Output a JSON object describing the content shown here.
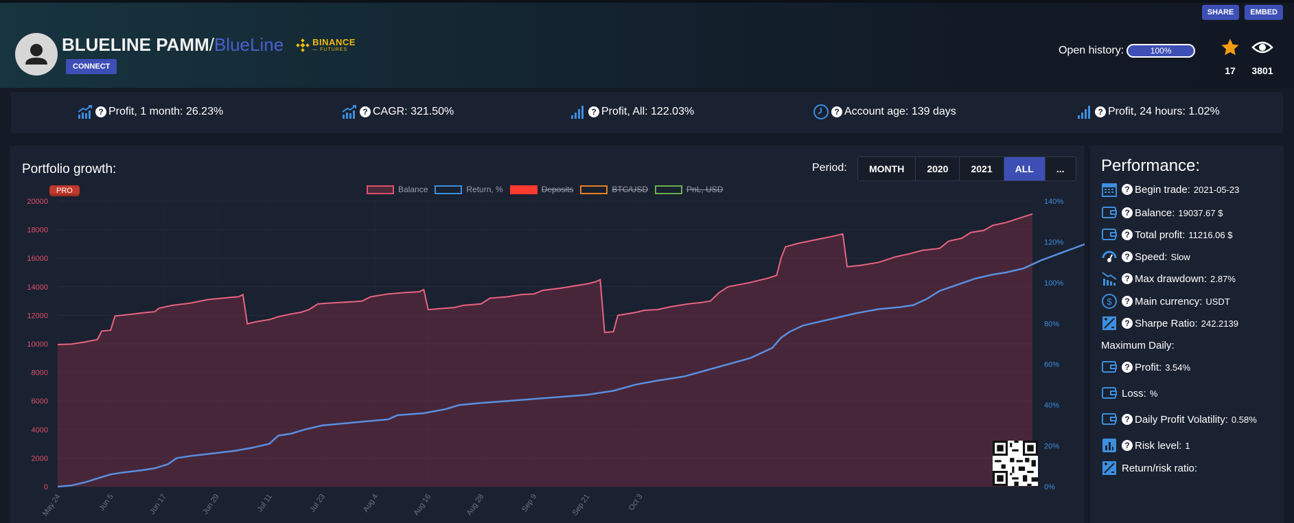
{
  "header": {
    "share_label": "SHARE",
    "embed_label": "EMBED",
    "title": "BLUELINE PAMM",
    "separator": "/",
    "subtitle": "BlueLine",
    "exchange_name": "BINANCE",
    "exchange_sub": "— FUTURES",
    "connect_label": "CONNECT",
    "open_history_label": "Open history:",
    "open_history_value": "100%",
    "stars_count": "17",
    "views_count": "3801"
  },
  "stats": [
    {
      "label": "Profit, 1 month: 26.23%",
      "icon": "trend-up-icon"
    },
    {
      "label": "CAGR: 321.50%",
      "icon": "trend-up-icon"
    },
    {
      "label": "Profit, All: 122.03%",
      "icon": "bars-icon"
    },
    {
      "label": "Account age: 139 days",
      "icon": "clock-icon"
    },
    {
      "label": "Profit, 24 hours: 1.02%",
      "icon": "bars-icon"
    }
  ],
  "chart": {
    "title": "Portfolio growth:",
    "pro_label": "PRO",
    "period_label": "Period:",
    "periods": [
      "MONTH",
      "2020",
      "2021",
      "ALL",
      "..."
    ],
    "active_period": "ALL",
    "legend": [
      {
        "label": "Balance",
        "color": "#e0506b",
        "fill": "#4a2a3a",
        "enabled": true
      },
      {
        "label": "Return, %",
        "color": "#3c8fe0",
        "fill": "#1a2130",
        "enabled": true
      },
      {
        "label": "Deposits",
        "color": "#ff3b2f",
        "fill": "#ff3b2f",
        "enabled": false
      },
      {
        "label": "BTC/USD",
        "color": "#e67e22",
        "fill": "#1a2130",
        "enabled": false
      },
      {
        "label": "PnL, USD",
        "color": "#6ab04c",
        "fill": "#1a2130",
        "enabled": false
      }
    ]
  },
  "chart_data": {
    "type": "line",
    "x_labels": [
      "May 24",
      "Jun 5",
      "Jun 17",
      "Jun 29",
      "Jul 11",
      "Jul 23",
      "Aug 4",
      "Aug 16",
      "Aug 28",
      "Sep 9",
      "Sep 21",
      "Oct 3"
    ],
    "y_left_ticks": [
      "0",
      "2000",
      "4000",
      "6000",
      "8000",
      "10000",
      "12000",
      "14000",
      "16000",
      "18000",
      "20000"
    ],
    "y_right_ticks": [
      "0%",
      "20%",
      "40%",
      "60%",
      "80%",
      "100%",
      "120%",
      "140%"
    ],
    "ylim_left": [
      0,
      20000
    ],
    "ylim_right": [
      0,
      140
    ],
    "day_span": 139,
    "series": [
      {
        "name": "Balance",
        "points": [
          [
            0,
            9950
          ],
          [
            3,
            9980
          ],
          [
            6,
            10120
          ],
          [
            9,
            10300
          ],
          [
            10,
            10900
          ],
          [
            12,
            10950
          ],
          [
            13,
            11950
          ],
          [
            16,
            12050
          ],
          [
            20,
            12200
          ],
          [
            22,
            12250
          ],
          [
            23,
            12500
          ],
          [
            26,
            12700
          ],
          [
            30,
            12850
          ],
          [
            34,
            13100
          ],
          [
            39,
            13250
          ],
          [
            41,
            13300
          ],
          [
            42,
            13450
          ],
          [
            43,
            11400
          ],
          [
            45,
            11550
          ],
          [
            48,
            11700
          ],
          [
            50,
            11900
          ],
          [
            53,
            12100
          ],
          [
            55,
            12200
          ],
          [
            57,
            12400
          ],
          [
            59,
            12800
          ],
          [
            64,
            12900
          ],
          [
            67,
            12950
          ],
          [
            69,
            13000
          ],
          [
            71,
            13300
          ],
          [
            75,
            13500
          ],
          [
            79,
            13600
          ],
          [
            82,
            13650
          ],
          [
            83,
            13800
          ],
          [
            84,
            12400
          ],
          [
            88,
            12500
          ],
          [
            90,
            12550
          ],
          [
            92,
            12700
          ],
          [
            96,
            12800
          ],
          [
            98,
            13200
          ],
          [
            102,
            13300
          ],
          [
            105,
            13450
          ],
          [
            108,
            13500
          ],
          [
            110,
            13750
          ],
          [
            114,
            13900
          ],
          [
            117,
            14050
          ],
          [
            120,
            14200
          ],
          [
            122,
            14350
          ],
          [
            123,
            14500
          ],
          [
            124,
            10800
          ],
          [
            126,
            10850
          ],
          [
            127,
            12000
          ],
          [
            131,
            12200
          ],
          [
            133,
            12350
          ],
          [
            136,
            12400
          ],
          [
            139,
            12600
          ],
          [
            143,
            12800
          ],
          [
            146,
            12900
          ],
          [
            148,
            13000
          ],
          [
            150,
            13600
          ],
          [
            152,
            14000
          ],
          [
            157,
            14300
          ],
          [
            161,
            14600
          ],
          [
            163,
            14800
          ],
          [
            164,
            16000
          ],
          [
            165,
            16800
          ],
          [
            168,
            17050
          ],
          [
            172,
            17300
          ],
          [
            176,
            17550
          ],
          [
            178,
            17700
          ],
          [
            179,
            15400
          ],
          [
            182,
            15500
          ],
          [
            184,
            15600
          ],
          [
            186,
            15700
          ],
          [
            188,
            15900
          ],
          [
            190,
            16100
          ],
          [
            193,
            16300
          ],
          [
            196,
            16550
          ],
          [
            199,
            16650
          ],
          [
            200,
            16700
          ],
          [
            202,
            17200
          ],
          [
            205,
            17400
          ],
          [
            207,
            17800
          ],
          [
            210,
            17950
          ],
          [
            212,
            18300
          ],
          [
            215,
            18500
          ],
          [
            218,
            18800
          ],
          [
            220,
            19000
          ],
          [
            221,
            19100
          ]
        ]
      },
      {
        "name": "Return, %",
        "points": [
          [
            0,
            0
          ],
          [
            3,
            0.5
          ],
          [
            6,
            2
          ],
          [
            9,
            4
          ],
          [
            12,
            6
          ],
          [
            15,
            7
          ],
          [
            19,
            8
          ],
          [
            22,
            9
          ],
          [
            25,
            11
          ],
          [
            27,
            14
          ],
          [
            30,
            15
          ],
          [
            34,
            16
          ],
          [
            40,
            17.5
          ],
          [
            44,
            19
          ],
          [
            48,
            21
          ],
          [
            50,
            25
          ],
          [
            53,
            26
          ],
          [
            56,
            28
          ],
          [
            60,
            30
          ],
          [
            65,
            31
          ],
          [
            70,
            32
          ],
          [
            75,
            33
          ],
          [
            77,
            35
          ],
          [
            83,
            36
          ],
          [
            88,
            38
          ],
          [
            91,
            40
          ],
          [
            96,
            41
          ],
          [
            102,
            42
          ],
          [
            108,
            43
          ],
          [
            114,
            44
          ],
          [
            120,
            45
          ],
          [
            126,
            47
          ],
          [
            131,
            50
          ],
          [
            136,
            52
          ],
          [
            142,
            54
          ],
          [
            147,
            57
          ],
          [
            152,
            60
          ],
          [
            157,
            63
          ],
          [
            160,
            66
          ],
          [
            162,
            68
          ],
          [
            164,
            73
          ],
          [
            166,
            76
          ],
          [
            169,
            79
          ],
          [
            173,
            81
          ],
          [
            177,
            83
          ],
          [
            181,
            85
          ],
          [
            186,
            87
          ],
          [
            191,
            88
          ],
          [
            194,
            89
          ],
          [
            197,
            92
          ],
          [
            200,
            96
          ],
          [
            204,
            99
          ],
          [
            208,
            102
          ],
          [
            212,
            104
          ],
          [
            215,
            105
          ],
          [
            219,
            107
          ],
          [
            223,
            111
          ],
          [
            228,
            115
          ],
          [
            233,
            119
          ],
          [
            236,
            122
          ]
        ]
      }
    ]
  },
  "performance": {
    "title": "Performance:",
    "rows": [
      {
        "label": "Begin trade:",
        "value": "2021-05-23",
        "icon": "calendar-icon"
      },
      {
        "label": "Balance:",
        "value": "19037.67 $",
        "icon": "wallet-icon"
      },
      {
        "label": "Total profit:",
        "value": "11216.06 $",
        "icon": "wallet-icon"
      },
      {
        "label": "Speed:",
        "value": "Slow",
        "icon": "speedometer-icon"
      },
      {
        "label": "Max drawdown:",
        "value": "2.87%",
        "icon": "drawdown-icon"
      },
      {
        "label": "Main currency:",
        "value": "USDT",
        "icon": "dollar-icon"
      },
      {
        "label": "Sharpe Ratio:",
        "value": "242.2139",
        "icon": "ratio-icon"
      }
    ],
    "section_label": "Maximum Daily:",
    "daily_rows": [
      {
        "label": "Profit:",
        "value": "3.54%",
        "icon": "wallet-icon",
        "has_q": true
      },
      {
        "label": "Loss:",
        "value": "%",
        "icon": "wallet-icon",
        "has_q": false
      },
      {
        "label": "Daily Profit Volatility:",
        "value": "0.58%",
        "icon": "wallet-icon",
        "has_q": true
      },
      {
        "label": "Risk level:",
        "value": "1",
        "icon": "bar-chart-icon",
        "has_q": true
      },
      {
        "label": "Return/risk ratio:",
        "value": "",
        "icon": "ratio-icon",
        "has_q": false
      }
    ]
  }
}
